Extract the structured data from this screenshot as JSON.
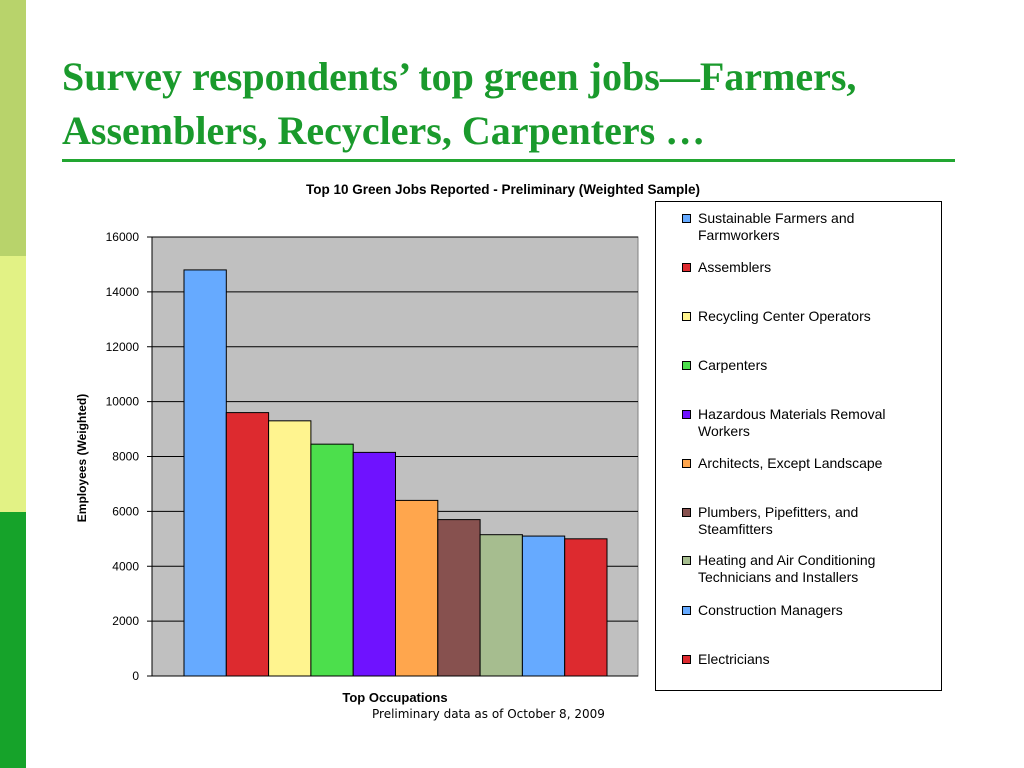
{
  "slide": {
    "title_line1": "Survey respondents’ top green jobs—Farmers,",
    "title_line2": "Assemblers, Recyclers, Carpenters …",
    "footnote": "Preliminary data as of October 8, 2009",
    "title_color": "#1a9a2c",
    "accent_colors": [
      "#b8d36b",
      "#e2f285",
      "#16a32a"
    ]
  },
  "chart_data": {
    "type": "bar",
    "title": "Top 10 Green Jobs Reported - Preliminary (Weighted Sample)",
    "xlabel": "Top Occupations",
    "ylabel": "Employees (Weighted)",
    "ylim": [
      0,
      16000
    ],
    "yticks": [
      "0",
      "2000",
      "4000",
      "6000",
      "8000",
      "10000",
      "12000",
      "14000",
      "16000"
    ],
    "grid": true,
    "legend_position": "right",
    "plot_background": "#c0c0c0",
    "series": [
      {
        "name": "Sustainable Farmers and Farmworkers",
        "value": 14800,
        "color": "#66aaff"
      },
      {
        "name": "Assemblers",
        "value": 9600,
        "color": "#dd2a2f"
      },
      {
        "name": "Recycling Center Operators",
        "value": 9300,
        "color": "#fff48f"
      },
      {
        "name": "Carpenters",
        "value": 8450,
        "color": "#4cdf4c"
      },
      {
        "name": "Hazardous Materials Removal Workers",
        "value": 8150,
        "color": "#6f12ff"
      },
      {
        "name": "Architects, Except Landscape",
        "value": 6400,
        "color": "#ffa64d"
      },
      {
        "name": "Plumbers, Pipefitters, and Steamfitters",
        "value": 5700,
        "color": "#87514f"
      },
      {
        "name": "Heating and Air Conditioning Technicians and Installers",
        "value": 5150,
        "color": "#a6bd8f"
      },
      {
        "name": "Construction Managers",
        "value": 5100,
        "color": "#66aaff"
      },
      {
        "name": "Electricians",
        "value": 5000,
        "color": "#dd2a2f"
      }
    ]
  }
}
